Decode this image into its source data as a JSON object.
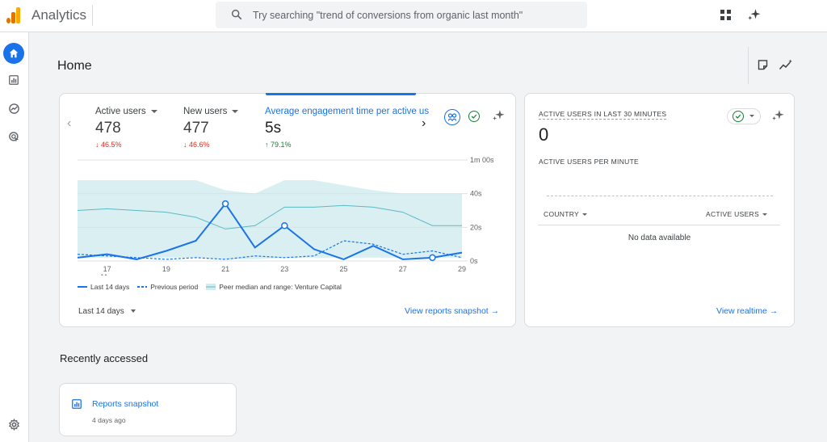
{
  "app": {
    "title": "Analytics"
  },
  "search": {
    "placeholder": "Try searching \"trend of conversions from organic last month\""
  },
  "rail": {
    "items": [
      "home-icon",
      "reports-icon",
      "explore-icon",
      "advertising-icon"
    ],
    "settings": "gear-icon"
  },
  "page": {
    "title": "Home"
  },
  "overview": {
    "metrics": [
      {
        "label": "Active users",
        "value": "478",
        "change": "46.5%",
        "direction": "down"
      },
      {
        "label": "New users",
        "value": "477",
        "change": "46.6%",
        "direction": "down"
      },
      {
        "label": "Average engagement time per active us",
        "value": "5s",
        "change": "79.1%",
        "direction": "up"
      }
    ],
    "range_label": "Last 14 days",
    "link": "View reports snapshot",
    "colors": {
      "current": "#1a73e8",
      "previous": "#1a73e8",
      "peer_band": "#d3ecef",
      "peer_median": "#5bbac3"
    }
  },
  "chart_data": {
    "type": "line",
    "x": [
      "16",
      "17",
      "18",
      "19",
      "20",
      "21",
      "22",
      "23",
      "24",
      "25",
      "26",
      "27",
      "28",
      "29"
    ],
    "x_tick_labels": [
      "17",
      "19",
      "21",
      "23",
      "25",
      "27",
      "29"
    ],
    "x_sublabel": "Mar",
    "y_tick_labels": [
      "0s",
      "20s",
      "40s",
      "1m 00s"
    ],
    "ylim": [
      0,
      60
    ],
    "series": [
      {
        "name": "Last 14 days",
        "style": "solid",
        "values": [
          2,
          4,
          1,
          6,
          12,
          34,
          8,
          21,
          7,
          1,
          9,
          1,
          2,
          5
        ]
      },
      {
        "name": "Previous period",
        "style": "dashed",
        "values": [
          4,
          3,
          2,
          1,
          2,
          1,
          3,
          2,
          3,
          12,
          10,
          4,
          6,
          2
        ]
      },
      {
        "name": "Peer median and range: Venture Capital",
        "style": "band",
        "median": [
          30,
          31,
          30,
          29,
          26,
          19,
          21,
          32,
          32,
          33,
          32,
          29,
          21,
          21
        ],
        "upper": [
          48,
          48,
          48,
          48,
          48,
          42,
          40,
          48,
          48,
          45,
          42,
          40,
          40,
          40
        ],
        "lower": [
          2,
          2,
          2,
          2,
          2,
          1,
          1,
          2,
          2,
          2,
          2,
          2,
          2,
          2
        ]
      }
    ],
    "highlighted_points": [
      5,
      7,
      12
    ]
  },
  "realtime": {
    "title": "ACTIVE USERS IN LAST 30 MINUTES",
    "value": "0",
    "subtitle": "ACTIVE USERS PER MINUTE",
    "col_country": "COUNTRY",
    "col_users": "ACTIVE USERS",
    "empty": "No data available",
    "link": "View realtime"
  },
  "recent": {
    "section_title": "Recently accessed",
    "items": [
      {
        "title": "Reports snapshot",
        "time": "4 days ago"
      }
    ]
  }
}
